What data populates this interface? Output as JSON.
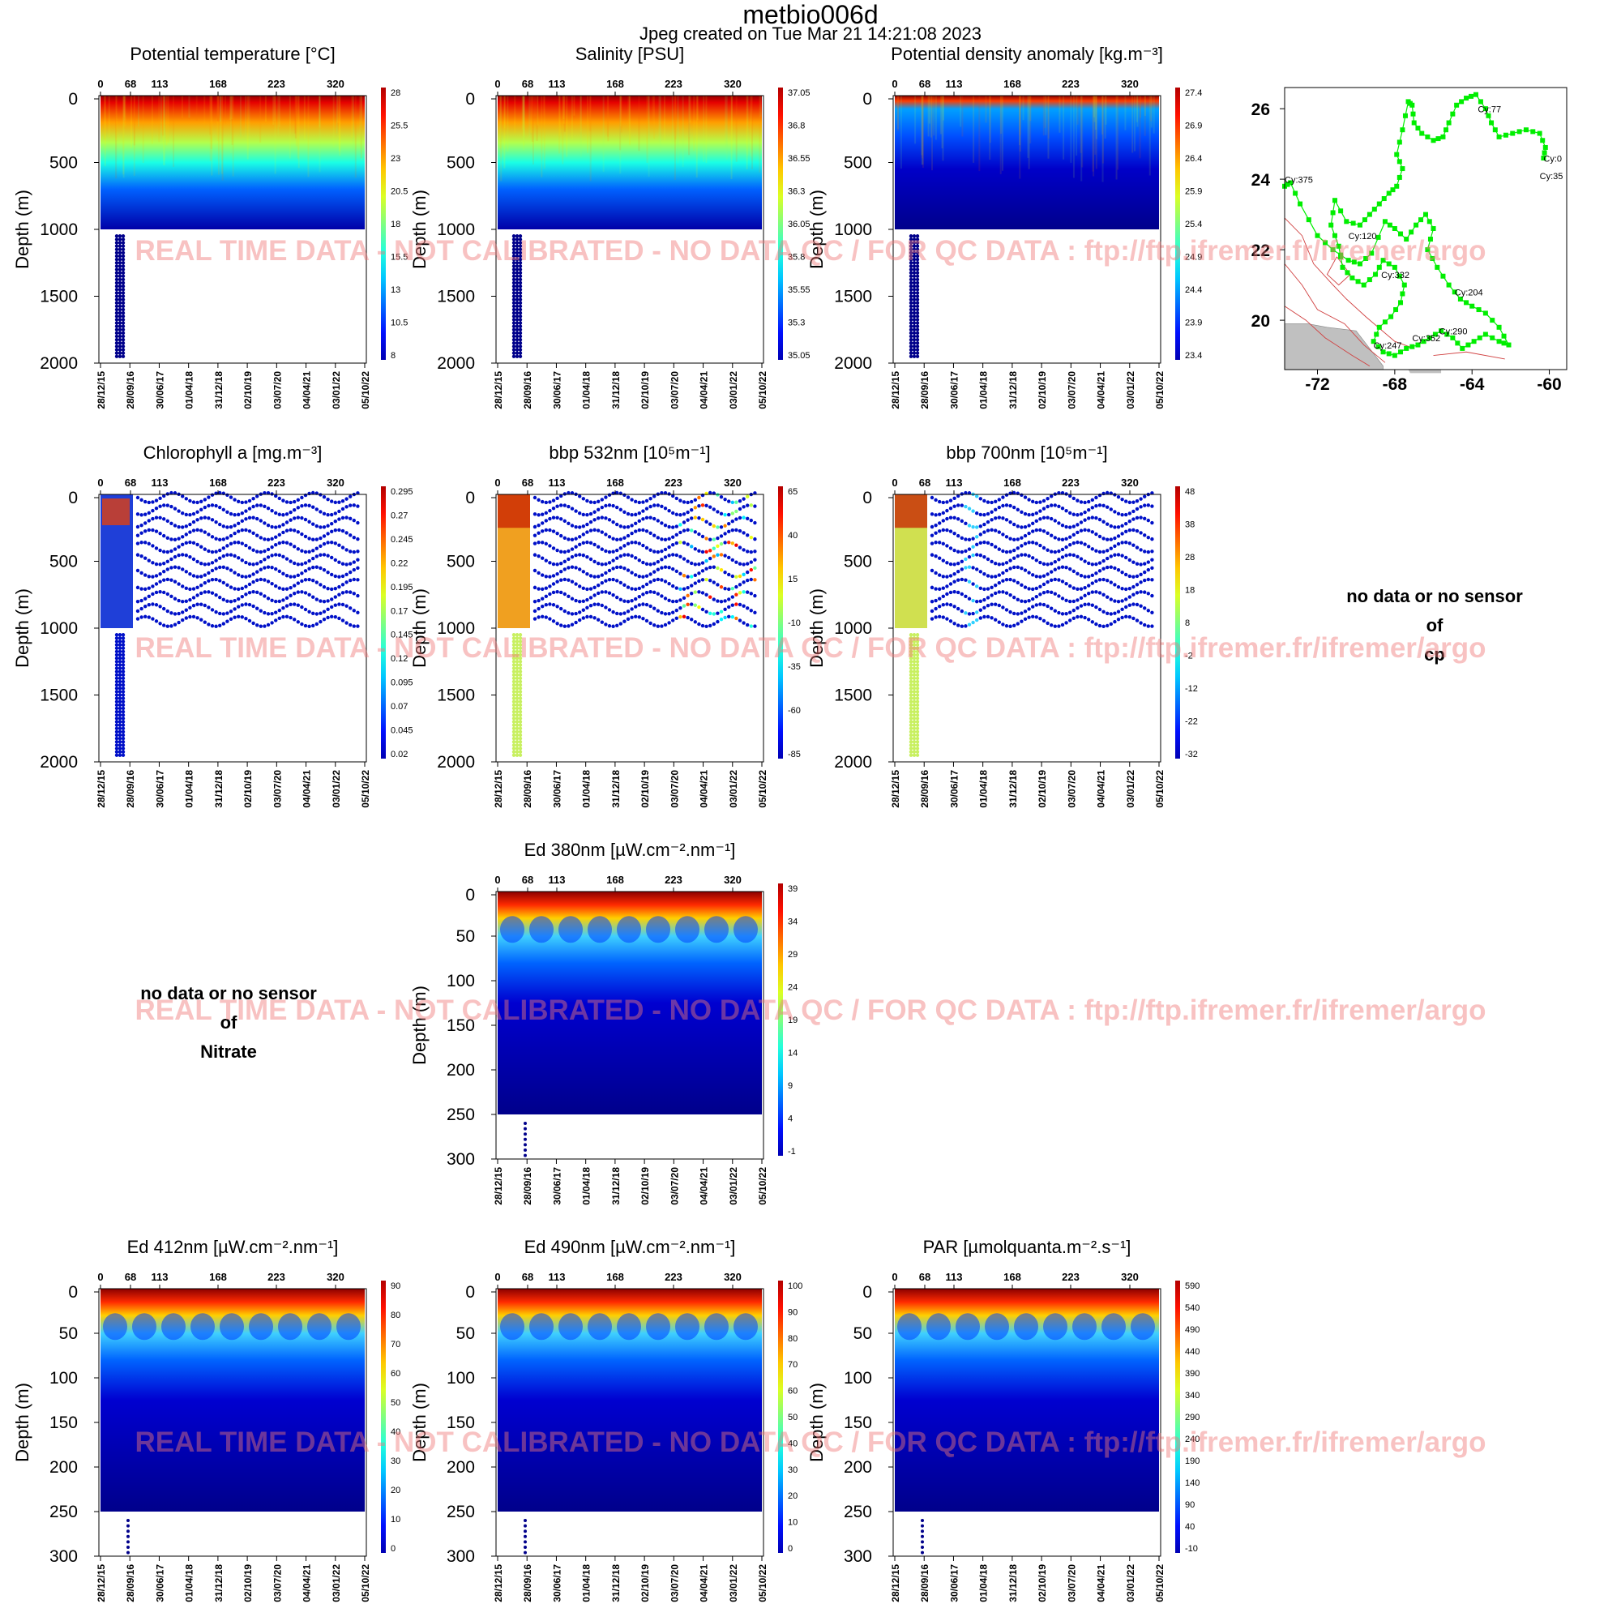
{
  "page": {
    "title": "metbio006d",
    "subtitle": "Jpeg created on  Tue Mar 21 14:21:08 2023",
    "watermark": "REAL TIME DATA - NOT CALIBRATED - NO DATA QC  /  FOR QC DATA : ftp://ftp.ifremer.fr/ifremer/argo",
    "colors": {
      "text": "#000000",
      "watermark": "#f08080",
      "deep": "#00008b",
      "surface": "#a50000"
    }
  },
  "no_data_panels": [
    {
      "id": "cp",
      "lines": [
        "no data or no sensor",
        "of",
        "cp"
      ]
    },
    {
      "id": "nitrate",
      "lines": [
        "no data or no sensor",
        "of",
        "Nitrate"
      ]
    }
  ],
  "chart_data": [
    {
      "id": "temperature",
      "type": "heatmap",
      "title": "Potential temperature [°C]",
      "ylabel": "Depth (m)",
      "ylim": [
        2000,
        0
      ],
      "yticks": [
        0,
        500,
        1000,
        1500,
        2000
      ],
      "top_ticks": [
        "0",
        "68",
        "113",
        "168",
        "223",
        "320"
      ],
      "date_ticks": [
        "28/12/15",
        "28/09/16",
        "30/06/17",
        "01/04/18",
        "31/12/18",
        "02/10/19",
        "03/07/20",
        "04/04/21",
        "03/01/22",
        "05/10/22"
      ],
      "colorbar": [
        "28",
        "25.5",
        "23",
        "20.5",
        "18",
        "15.5",
        "13",
        "10.5",
        "8"
      ],
      "style": "profile"
    },
    {
      "id": "salinity",
      "type": "heatmap",
      "title": "Salinity [PSU]",
      "ylabel": "Depth (m)",
      "ylim": [
        2000,
        0
      ],
      "yticks": [
        0,
        500,
        1000,
        1500,
        2000
      ],
      "top_ticks": [
        "0",
        "68",
        "113",
        "168",
        "223",
        "320"
      ],
      "date_ticks": [
        "28/12/15",
        "28/09/16",
        "30/06/17",
        "01/04/18",
        "31/12/18",
        "02/10/19",
        "03/07/20",
        "04/04/21",
        "03/01/22",
        "05/10/22"
      ],
      "colorbar": [
        "37.05",
        "36.8",
        "36.55",
        "36.3",
        "36.05",
        "35.8",
        "35.55",
        "35.3",
        "35.05"
      ],
      "style": "profile"
    },
    {
      "id": "density",
      "type": "heatmap",
      "title": "Potential density anomaly [kg.m⁻³]",
      "ylabel": "Depth (m)",
      "ylim": [
        2000,
        0
      ],
      "yticks": [
        0,
        500,
        1000,
        1500,
        2000
      ],
      "top_ticks": [
        "0",
        "68",
        "113",
        "168",
        "223",
        "320"
      ],
      "date_ticks": [
        "28/12/15",
        "28/09/16",
        "30/06/17",
        "01/04/18",
        "31/12/18",
        "02/10/19",
        "03/07/20",
        "04/04/21",
        "03/01/22",
        "05/10/22"
      ],
      "colorbar": [
        "27.4",
        "26.9",
        "26.4",
        "25.9",
        "25.4",
        "24.9",
        "24.4",
        "23.9",
        "23.4"
      ],
      "style": "profile-reversed"
    },
    {
      "id": "chlorophyll",
      "type": "heatmap",
      "title": "Chlorophyll a [mg.m⁻³]",
      "ylabel": "Depth (m)",
      "ylim": [
        2000,
        0
      ],
      "yticks": [
        0,
        500,
        1000,
        1500,
        2000
      ],
      "top_ticks": [
        "0",
        "68",
        "113",
        "168",
        "223",
        "320"
      ],
      "date_ticks": [
        "28/12/15",
        "28/09/16",
        "30/06/17",
        "01/04/18",
        "31/12/18",
        "02/10/19",
        "03/07/20",
        "04/04/21",
        "03/01/22",
        "05/10/22"
      ],
      "colorbar": [
        "0.295",
        "0.27",
        "0.245",
        "0.22",
        "0.195",
        "0.17",
        "0.145",
        "0.12",
        "0.095",
        "0.07",
        "0.045",
        "0.02"
      ],
      "style": "sparse-chl"
    },
    {
      "id": "bbp532",
      "type": "heatmap",
      "title": "bbp 532nm [10⁵m⁻¹]",
      "ylabel": "Depth (m)",
      "ylim": [
        2000,
        0
      ],
      "yticks": [
        0,
        500,
        1000,
        1500,
        2000
      ],
      "top_ticks": [
        "0",
        "68",
        "113",
        "168",
        "223",
        "320"
      ],
      "date_ticks": [
        "28/12/15",
        "28/09/16",
        "30/06/17",
        "01/04/18",
        "31/12/18",
        "02/10/19",
        "03/07/20",
        "04/04/21",
        "03/01/22",
        "05/10/22"
      ],
      "colorbar": [
        "65",
        "40",
        "15",
        "-10",
        "-35",
        "-60",
        "-85"
      ],
      "style": "sparse-bbp532"
    },
    {
      "id": "bbp700",
      "type": "heatmap",
      "title": "bbp 700nm [10⁵m⁻¹]",
      "ylabel": "Depth (m)",
      "ylim": [
        2000,
        0
      ],
      "yticks": [
        0,
        500,
        1000,
        1500,
        2000
      ],
      "top_ticks": [
        "0",
        "68",
        "113",
        "168",
        "223",
        "320"
      ],
      "date_ticks": [
        "28/12/15",
        "28/09/16",
        "30/06/17",
        "01/04/18",
        "31/12/18",
        "02/10/19",
        "03/07/20",
        "04/04/21",
        "03/01/22",
        "05/10/22"
      ],
      "colorbar": [
        "48",
        "38",
        "28",
        "18",
        "8",
        "-2",
        "-12",
        "-22",
        "-32"
      ],
      "style": "sparse-bbp700"
    },
    {
      "id": "ed380",
      "type": "heatmap",
      "title": "Ed 380nm [µW.cm⁻².nm⁻¹]",
      "ylabel": "Depth (m)",
      "ylim": [
        300,
        0
      ],
      "yticks": [
        0,
        50,
        100,
        150,
        200,
        250,
        300
      ],
      "top_ticks": [
        "0",
        "68",
        "113",
        "168",
        "223",
        "320"
      ],
      "date_ticks": [
        "28/12/15",
        "28/09/16",
        "30/06/17",
        "01/04/18",
        "31/12/18",
        "02/10/19",
        "03/07/20",
        "04/04/21",
        "03/01/22",
        "05/10/22"
      ],
      "colorbar": [
        "39",
        "34",
        "29",
        "24",
        "19",
        "14",
        "9",
        "4",
        "-1"
      ],
      "style": "light"
    },
    {
      "id": "ed412",
      "type": "heatmap",
      "title": "Ed 412nm [µW.cm⁻².nm⁻¹]",
      "ylabel": "Depth (m)",
      "ylim": [
        300,
        0
      ],
      "yticks": [
        0,
        50,
        100,
        150,
        200,
        250,
        300
      ],
      "top_ticks": [
        "0",
        "68",
        "113",
        "168",
        "223",
        "320"
      ],
      "date_ticks": [
        "28/12/15",
        "28/09/16",
        "30/06/17",
        "01/04/18",
        "31/12/18",
        "02/10/19",
        "03/07/20",
        "04/04/21",
        "03/01/22",
        "05/10/22"
      ],
      "colorbar": [
        "90",
        "80",
        "70",
        "60",
        "50",
        "40",
        "30",
        "20",
        "10",
        "0"
      ],
      "style": "light"
    },
    {
      "id": "ed490",
      "type": "heatmap",
      "title": "Ed 490nm [µW.cm⁻².nm⁻¹]",
      "ylabel": "Depth (m)",
      "ylim": [
        300,
        0
      ],
      "yticks": [
        0,
        50,
        100,
        150,
        200,
        250,
        300
      ],
      "top_ticks": [
        "0",
        "68",
        "113",
        "168",
        "223",
        "320"
      ],
      "date_ticks": [
        "28/12/15",
        "28/09/16",
        "30/06/17",
        "01/04/18",
        "31/12/18",
        "02/10/19",
        "03/07/20",
        "04/04/21",
        "03/01/22",
        "05/10/22"
      ],
      "colorbar": [
        "100",
        "90",
        "80",
        "70",
        "60",
        "50",
        "40",
        "30",
        "20",
        "10",
        "0"
      ],
      "style": "light"
    },
    {
      "id": "par",
      "type": "heatmap",
      "title": "PAR [µmolquanta.m⁻².s⁻¹]",
      "ylabel": "Depth (m)",
      "ylim": [
        300,
        0
      ],
      "yticks": [
        0,
        50,
        100,
        150,
        200,
        250,
        300
      ],
      "top_ticks": [
        "0",
        "68",
        "113",
        "168",
        "223",
        "320"
      ],
      "date_ticks": [
        "28/12/15",
        "28/09/16",
        "30/06/17",
        "01/04/18",
        "31/12/18",
        "02/10/19",
        "03/07/20",
        "04/04/21",
        "03/01/22",
        "05/10/22"
      ],
      "colorbar": [
        "590",
        "540",
        "490",
        "440",
        "390",
        "340",
        "290",
        "240",
        "190",
        "140",
        "90",
        "40",
        "-10"
      ],
      "style": "light"
    },
    {
      "id": "trajectory",
      "type": "scatter",
      "xticks": [
        -72,
        -68,
        -64,
        -60
      ],
      "yticks": [
        20,
        22,
        24,
        26
      ],
      "xlim": [
        -73.7,
        -59.1
      ],
      "ylim": [
        18.6,
        26.6
      ],
      "point_color": "#00ee00",
      "cycle_labels": [
        {
          "label": "Cy:0",
          "lon": -60.3,
          "lat": 24.5
        },
        {
          "label": "Cy:35",
          "lon": -60.5,
          "lat": 24.0
        },
        {
          "label": "Cy:77",
          "lon": -63.7,
          "lat": 25.9
        },
        {
          "label": "Cy:120",
          "lon": -70.4,
          "lat": 22.3
        },
        {
          "label": "Cy:204",
          "lon": -64.9,
          "lat": 20.7
        },
        {
          "label": "Cy:247",
          "lon": -69.1,
          "lat": 19.2
        },
        {
          "label": "Cy:290",
          "lon": -65.7,
          "lat": 19.6
        },
        {
          "label": "Cy:332",
          "lon": -68.7,
          "lat": 21.2
        },
        {
          "label": "Cy:352",
          "lon": -67.1,
          "lat": 19.4
        },
        {
          "label": "Cy:375",
          "lon": -73.7,
          "lat": 23.9
        }
      ],
      "track": [
        [
          -60.3,
          24.6
        ],
        [
          -60.2,
          24.9
        ],
        [
          -60.5,
          25.3
        ],
        [
          -61.2,
          25.4
        ],
        [
          -61.9,
          25.3
        ],
        [
          -62.6,
          25.2
        ],
        [
          -63.0,
          25.6
        ],
        [
          -63.3,
          26.0
        ],
        [
          -63.8,
          26.4
        ],
        [
          -64.3,
          26.3
        ],
        [
          -64.8,
          26.1
        ],
        [
          -65.2,
          25.6
        ],
        [
          -65.5,
          25.2
        ],
        [
          -66.0,
          25.1
        ],
        [
          -66.6,
          25.3
        ],
        [
          -67.0,
          25.6
        ],
        [
          -67.1,
          26.1
        ],
        [
          -67.3,
          26.2
        ],
        [
          -67.6,
          25.4
        ],
        [
          -67.9,
          24.7
        ],
        [
          -67.6,
          24.3
        ],
        [
          -67.9,
          23.8
        ],
        [
          -68.3,
          23.6
        ],
        [
          -68.8,
          23.3
        ],
        [
          -69.3,
          23.0
        ],
        [
          -69.8,
          22.7
        ],
        [
          -70.5,
          22.8
        ],
        [
          -71.1,
          23.4
        ],
        [
          -71.3,
          22.7
        ],
        [
          -70.9,
          22.1
        ],
        [
          -70.7,
          21.5
        ],
        [
          -70.2,
          21.2
        ],
        [
          -69.6,
          21.0
        ],
        [
          -69.0,
          21.3
        ],
        [
          -68.6,
          21.7
        ],
        [
          -68.0,
          21.5
        ],
        [
          -67.5,
          21.0
        ],
        [
          -67.7,
          20.5
        ],
        [
          -68.2,
          20.1
        ],
        [
          -68.8,
          19.8
        ],
        [
          -69.1,
          19.4
        ],
        [
          -68.6,
          19.1
        ],
        [
          -68.0,
          19.0
        ],
        [
          -67.4,
          19.2
        ],
        [
          -66.8,
          19.3
        ],
        [
          -66.2,
          19.5
        ],
        [
          -65.6,
          19.7
        ],
        [
          -65.0,
          19.5
        ],
        [
          -64.5,
          19.2
        ],
        [
          -63.9,
          19.4
        ],
        [
          -63.3,
          19.6
        ],
        [
          -62.6,
          19.4
        ],
        [
          -62.1,
          19.3
        ],
        [
          -62.6,
          19.8
        ],
        [
          -63.3,
          20.2
        ],
        [
          -64.0,
          20.4
        ],
        [
          -64.6,
          20.6
        ],
        [
          -65.2,
          21.0
        ],
        [
          -65.8,
          21.5
        ],
        [
          -66.3,
          22.0
        ],
        [
          -66.0,
          22.6
        ],
        [
          -66.4,
          23.0
        ],
        [
          -66.9,
          22.7
        ],
        [
          -67.4,
          22.3
        ],
        [
          -68.0,
          22.6
        ],
        [
          -68.5,
          22.8
        ],
        [
          -69.2,
          21.9
        ],
        [
          -69.8,
          21.6
        ],
        [
          -70.4,
          21.7
        ],
        [
          -71.2,
          22.0
        ],
        [
          -72.0,
          22.4
        ],
        [
          -72.9,
          23.3
        ],
        [
          -73.4,
          23.9
        ],
        [
          -73.7,
          23.8
        ]
      ]
    }
  ]
}
